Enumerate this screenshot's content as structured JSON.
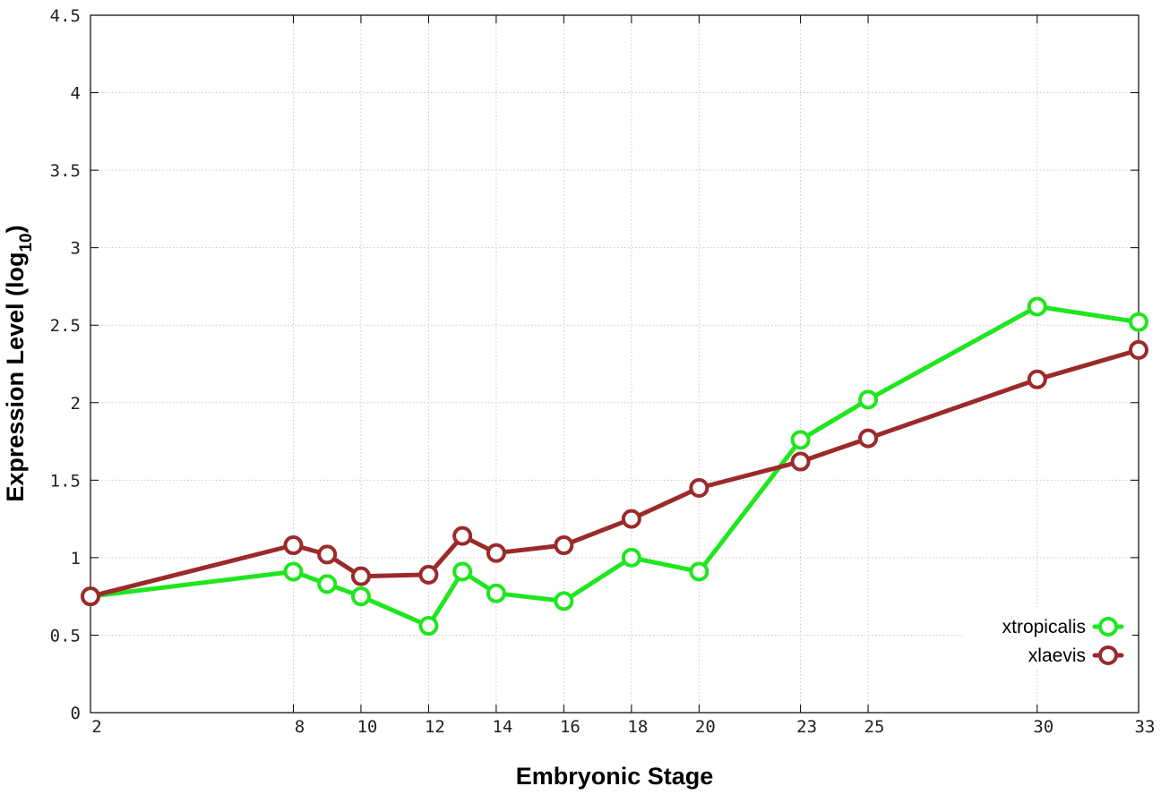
{
  "chart_data": {
    "type": "line",
    "title": "",
    "xlabel": "Embryonic Stage",
    "ylabel_main": "Expression Level (log",
    "ylabel_sub": "10",
    "ylabel_close": ")",
    "x_ticks": [
      2,
      8,
      10,
      12,
      14,
      16,
      18,
      20,
      23,
      25,
      30,
      33
    ],
    "y_ticks": [
      "0",
      "0.5",
      "1",
      "1.5",
      "2",
      "2.5",
      "3",
      "3.5",
      "4",
      "4.5"
    ],
    "xlim": [
      2,
      33
    ],
    "ylim": [
      0,
      4.5
    ],
    "grid": true,
    "legend_position": "bottom-right",
    "x": [
      2,
      8,
      9,
      10,
      12,
      13,
      14,
      16,
      18,
      20,
      23,
      25,
      30,
      33
    ],
    "series": [
      {
        "name": "xtropicalis",
        "color": "#1fe61f",
        "values": [
          0.75,
          0.91,
          0.83,
          0.75,
          0.56,
          0.91,
          0.77,
          0.72,
          1.0,
          0.91,
          1.76,
          2.02,
          2.62,
          2.52
        ]
      },
      {
        "name": "xlaevis",
        "color": "#9b2a2a",
        "values": [
          0.75,
          1.08,
          1.02,
          0.88,
          0.89,
          1.14,
          1.03,
          1.08,
          1.25,
          1.45,
          1.62,
          1.77,
          2.15,
          2.34
        ]
      }
    ]
  }
}
